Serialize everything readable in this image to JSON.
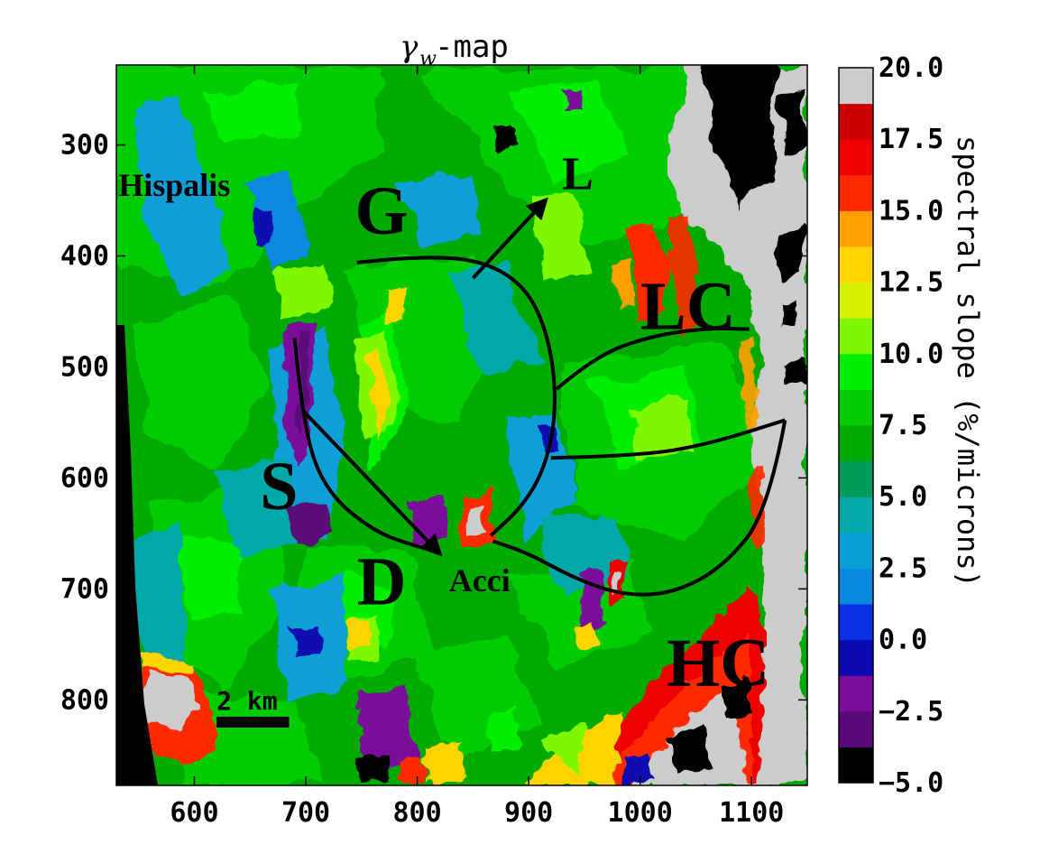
{
  "chart_data": {
    "type": "heatmap",
    "title_symbol": "γ",
    "title_subscript": "w",
    "title_suffix": "-map",
    "xlim": [
      530,
      1150
    ],
    "ylim": [
      877,
      228
    ],
    "x_ticks": [
      600,
      700,
      800,
      900,
      1000,
      1100
    ],
    "x_tick_labels": [
      "600",
      "700",
      "800",
      "900",
      "1000",
      "1100"
    ],
    "y_ticks": [
      300,
      400,
      500,
      600,
      700,
      800
    ],
    "y_tick_labels": [
      "300",
      "400",
      "500",
      "600",
      "700",
      "800"
    ],
    "colorbar": {
      "label": "spectral slope (%/microns)",
      "range": [
        -5.0,
        20.0
      ],
      "ticks": [
        20.0,
        17.5,
        15.0,
        12.5,
        10.0,
        7.5,
        5.0,
        2.5,
        0.0,
        -2.5,
        -5.0
      ],
      "tick_labels": [
        "20.0",
        "17.5",
        "15.0",
        "12.5",
        "10.0",
        "7.5",
        "5.0",
        "2.5",
        "0.0",
        "−2.5",
        "−5.0"
      ],
      "levels": [
        {
          "lo": -5.0,
          "hi": -3.75,
          "color": "#000000"
        },
        {
          "lo": -3.75,
          "hi": -2.5,
          "color": "#5a0a78"
        },
        {
          "lo": -2.5,
          "hi": -1.25,
          "color": "#7a0d9a"
        },
        {
          "lo": -1.25,
          "hi": 0.0,
          "color": "#0a0ab0"
        },
        {
          "lo": 0.0,
          "hi": 1.25,
          "color": "#0b30e6"
        },
        {
          "lo": 1.25,
          "hi": 2.5,
          "color": "#0a88e0"
        },
        {
          "lo": 2.5,
          "hi": 3.75,
          "color": "#089fd6"
        },
        {
          "lo": 3.75,
          "hi": 5.0,
          "color": "#02a8a8"
        },
        {
          "lo": 5.0,
          "hi": 6.25,
          "color": "#009a5a"
        },
        {
          "lo": 6.25,
          "hi": 7.5,
          "color": "#00aa00"
        },
        {
          "lo": 7.5,
          "hi": 8.75,
          "color": "#00cc00"
        },
        {
          "lo": 8.75,
          "hi": 10.0,
          "color": "#00ee00"
        },
        {
          "lo": 10.0,
          "hi": 11.25,
          "color": "#7ef800"
        },
        {
          "lo": 11.25,
          "hi": 12.5,
          "color": "#d6f000"
        },
        {
          "lo": 12.5,
          "hi": 13.75,
          "color": "#ffd400"
        },
        {
          "lo": 13.75,
          "hi": 15.0,
          "color": "#ffa000"
        },
        {
          "lo": 15.0,
          "hi": 16.25,
          "color": "#ff2a00"
        },
        {
          "lo": 16.25,
          "hi": 17.5,
          "color": "#ee0000"
        },
        {
          "lo": 17.5,
          "hi": 18.75,
          "color": "#cc0000"
        },
        {
          "lo": 18.75,
          "hi": 20.0,
          "color": "#cccccc"
        }
      ]
    },
    "annotations": [
      {
        "text": "Hispalis",
        "x": 582,
        "y": 346,
        "size": "small"
      },
      {
        "text": "G",
        "x": 768,
        "y": 380,
        "size": "large"
      },
      {
        "text": "L",
        "x": 944,
        "y": 340,
        "size": "medium"
      },
      {
        "text": "LC",
        "x": 1043,
        "y": 466,
        "size": "large"
      },
      {
        "text": "S",
        "x": 676,
        "y": 628,
        "size": "large"
      },
      {
        "text": "D",
        "x": 768,
        "y": 714,
        "size": "large"
      },
      {
        "text": "Acci",
        "x": 856,
        "y": 702,
        "size": "small"
      },
      {
        "text": "HC",
        "x": 1070,
        "y": 787,
        "size": "large"
      }
    ],
    "scale_bar": {
      "label": "2 km",
      "x0": 620,
      "x1": 685,
      "y": 820
    },
    "outlines": [
      {
        "name": "G",
        "points": [
          [
            746,
            406
          ],
          [
            800,
            400
          ],
          [
            860,
            404
          ],
          [
            900,
            430
          ],
          [
            920,
            480
          ],
          [
            925,
            540
          ],
          [
            915,
            590
          ],
          [
            895,
            625
          ],
          [
            866,
            652
          ]
        ]
      },
      {
        "name": "S",
        "points": [
          [
            690,
            474
          ],
          [
            697,
            550
          ],
          [
            716,
            610
          ],
          [
            760,
            648
          ],
          [
            800,
            662
          ],
          [
            815,
            665
          ]
        ]
      },
      {
        "name": "LC",
        "points": [
          [
            925,
            520
          ],
          [
            960,
            490
          ],
          [
            1010,
            472
          ],
          [
            1060,
            465
          ],
          [
            1098,
            466
          ]
        ]
      },
      {
        "name": "HC-left",
        "points": [
          [
            920,
            582
          ],
          [
            1000,
            580
          ],
          [
            1060,
            570
          ],
          [
            1130,
            548
          ]
        ]
      },
      {
        "name": "HC-right",
        "points": [
          [
            1130,
            548
          ],
          [
            1115,
            630
          ],
          [
            1075,
            680
          ],
          [
            1030,
            704
          ],
          [
            985,
            706
          ],
          [
            940,
            690
          ],
          [
            900,
            668
          ],
          [
            868,
            657
          ]
        ]
      }
    ],
    "arrows": [
      {
        "from": [
          850,
          420
        ],
        "to": [
          915,
          350
        ]
      },
      {
        "from": [
          698,
          540
        ],
        "to": [
          820,
          668
        ]
      }
    ]
  }
}
